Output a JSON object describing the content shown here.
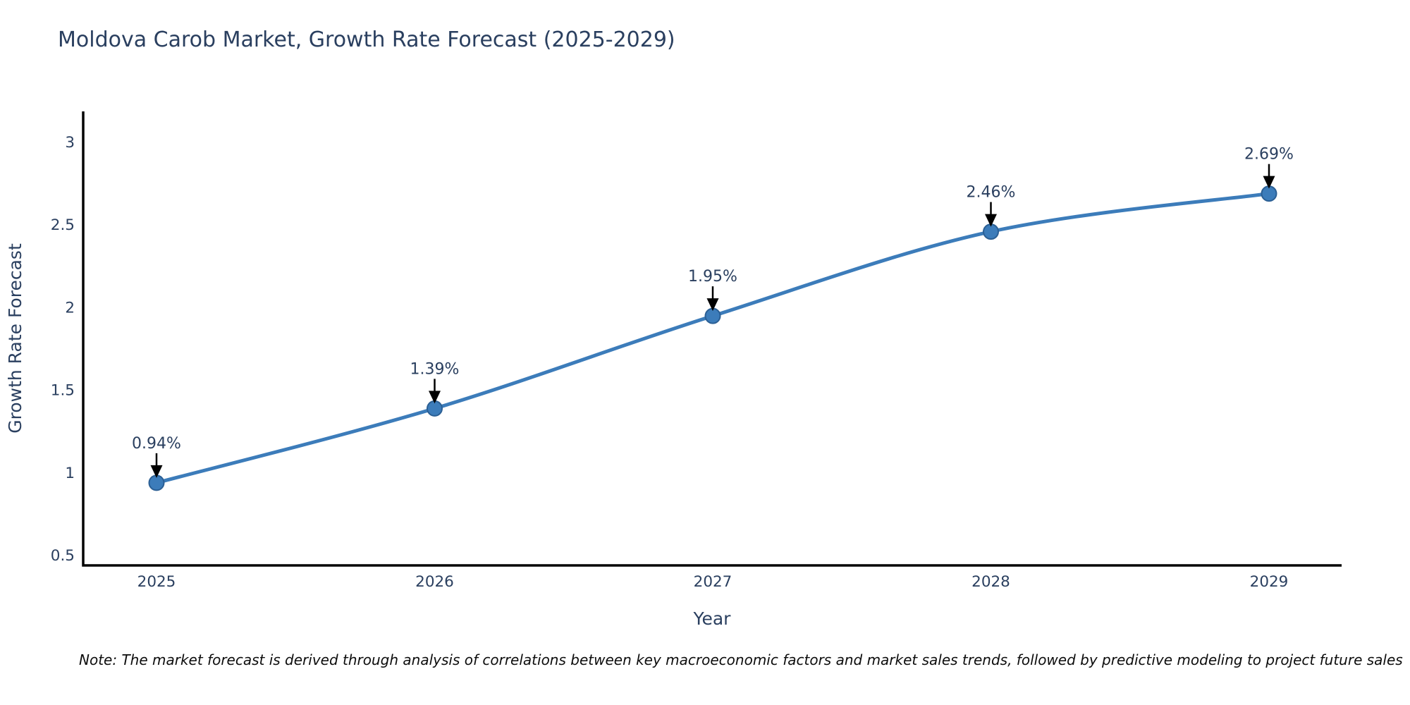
{
  "chart_data": {
    "type": "line",
    "title": "Moldova Carob Market, Growth Rate Forecast (2025-2029)",
    "xlabel": "Year",
    "ylabel": "Growth Rate Forecast",
    "categories": [
      "2025",
      "2026",
      "2027",
      "2028",
      "2029"
    ],
    "values": [
      0.94,
      1.39,
      1.95,
      2.46,
      2.69
    ],
    "point_labels": [
      "0.94%",
      "1.39%",
      "1.95%",
      "2.46%",
      "2.69%"
    ],
    "ylim": [
      0.5,
      3
    ],
    "yticks": [
      0.5,
      1,
      1.5,
      2,
      2.5,
      3
    ],
    "grid": false,
    "legend_position": "none",
    "line_shape": "spline",
    "line_color": "#3c7cba",
    "marker_color": "#3c7cba",
    "marker_edge_color": "#2b5f94",
    "annotation_arrow_color": "#000000",
    "text_color": "#2a3f5f",
    "axis_line_color": "#000000"
  },
  "note": {
    "text": "Note: The market forecast is derived through analysis of correlations between key macroeconomic factors and market sales trends, followed by predictive modeling to project future sales"
  }
}
